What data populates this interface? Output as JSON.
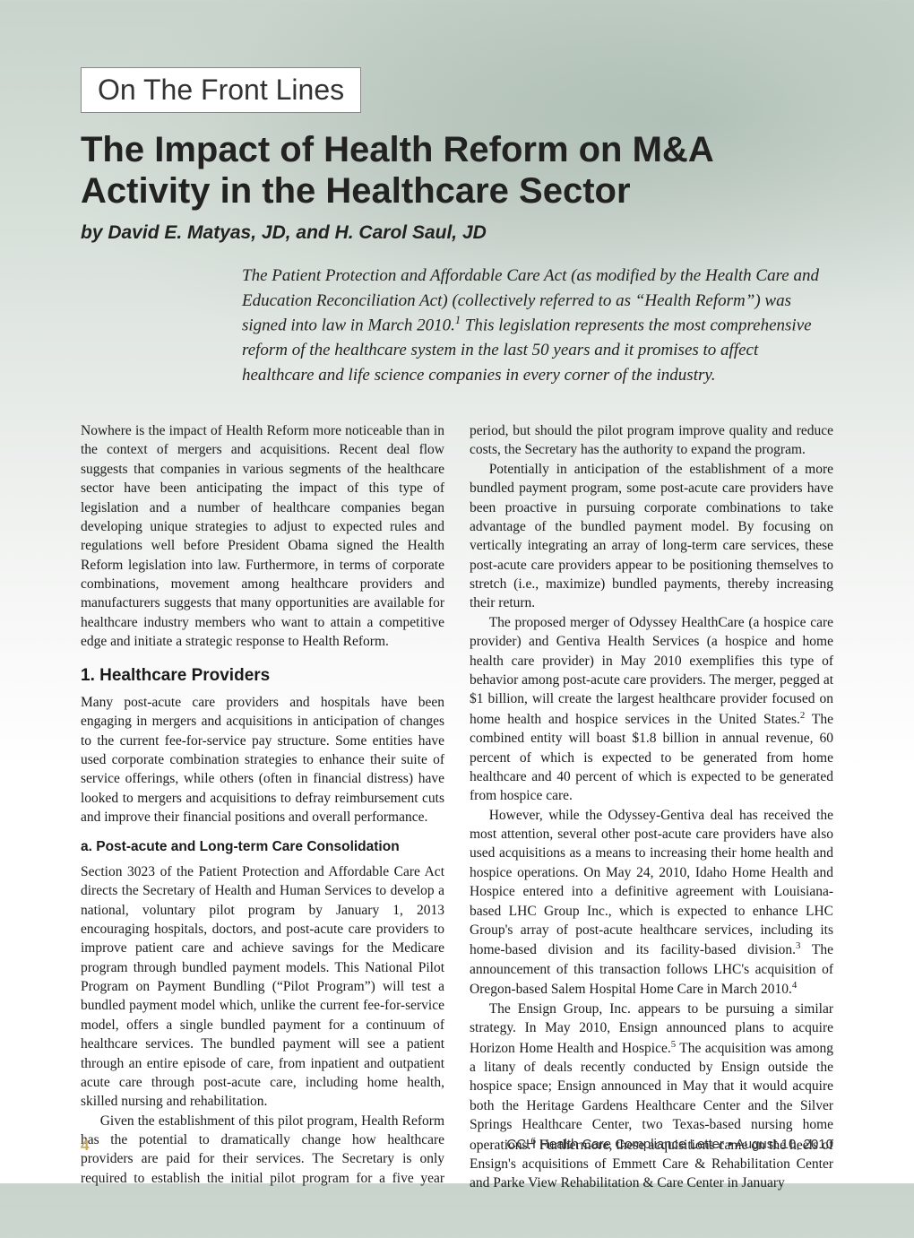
{
  "section_label": "On The Front Lines",
  "title": "The Impact of Health Reform on M&A Activity in the Healthcare Sector",
  "byline": "by David E. Matyas, JD, and H. Carol Saul, JD",
  "intro_part1": "The Patient Protection and Affordable Care Act (as modified by the Health Care and Education Reconciliation Act) (collectively referred to as “Health Reform”) was signed into law in March 2010.",
  "intro_sup1": "1",
  "intro_part2": " This legislation represents the most comprehensive reform of the healthcare system in the last 50 years and it promises to affect healthcare and life science companies in every corner of the industry.",
  "body": {
    "p1": "Nowhere is the impact of Health Reform more noticeable than in the context of mergers and acquisitions. Recent deal flow suggests that companies in various segments of the healthcare sector have been anticipating the impact of this type of legislation and a number of healthcare companies began developing unique strategies to adjust to expected rules and regulations well before President Obama signed the Health Reform legislation into law. Furthermore, in terms of corporate combinations, movement among healthcare providers and manufacturers suggests that many opportunities are available for healthcare industry members who want to attain a competitive edge and initiate a strategic response to Health Reform.",
    "h1": "1. Healthcare Providers",
    "p2": "Many post-acute care providers and hospitals have been engaging in mergers and acquisitions in anticipation of changes to the current fee-for-service pay structure. Some entities have used corporate combination strategies to enhance their suite of service offerings, while others (often in financial distress) have looked to mergers and acquisitions to defray reimbursement cuts and improve their financial positions and overall performance.",
    "h2": "a. Post-acute and Long-term Care Consolidation",
    "p3": "Section 3023 of the Patient Protection and Affordable Care Act directs the Secretary of Health and Human Services to develop a national, voluntary pilot program by January 1, 2013 encouraging hospitals, doctors, and post-acute care providers to improve patient care and achieve savings for the Medicare program through bundled payment models. This National Pilot Program on Payment Bundling (“Pilot Program”) will test a bundled payment model which, unlike the current fee-for-service model, offers a single bundled payment for a continuum of healthcare services. The bundled payment will see a patient through an entire episode of care, from inpatient and outpatient acute care through post-acute care, including home health, skilled nursing and rehabilitation.",
    "p4": "Given the establishment of this pilot program, Health Reform has the potential to dramatically change how healthcare providers are paid for their services. The Secretary is only required to establish the initial pilot program for a five year period, but should the pilot program improve quality and reduce costs, the Secretary has the authority to expand the program.",
    "p5": "Potentially in anticipation of the establishment of a more bundled payment program, some post-acute care providers have been proactive in pursuing corporate combinations to take advantage of the bundled payment model. By focusing on vertically integrating an array of long-term care services, these post-acute care providers appear to be positioning themselves to stretch (i.e., maximize) bundled payments, thereby increasing their return.",
    "p6a": "The proposed merger of Odyssey HealthCare (a hospice care provider) and Gentiva Health Services (a hospice and home health care provider) in May 2010 exemplifies this type of behavior among post-acute care providers. The merger, pegged at $1 billion, will create the largest healthcare provider focused on home health and hospice services in the United States.",
    "sup2": "2",
    "p6b": " The combined entity will boast $1.8 billion in annual revenue, 60 percent of which is expected to be generated from home healthcare and 40 percent of which is expected to be generated from hospice care.",
    "p7a": "However, while the Odyssey-Gentiva deal has received the most attention, several other post-acute care providers have also used acquisitions as a means to increasing their home health and hospice operations. On May 24, 2010, Idaho Home Health and Hospice entered into a definitive agreement with Louisiana-based LHC Group Inc., which is expected to enhance LHC Group's array of post-acute healthcare services, including its home-based division and its facility-based division.",
    "sup3": "3",
    "p7b": " The announcement of this transaction follows LHC's acquisition of Oregon-based Salem Hospital Home Care in March 2010.",
    "sup4": "4",
    "p8a": "The Ensign Group, Inc. appears to be pursuing a similar strategy. In May 2010, Ensign announced plans to acquire Horizon Home Health and Hospice.",
    "sup5": "5",
    "p8b": " The acquisition was among a litany of deals recently conducted by Ensign outside the hospice space; Ensign announced in May that it would acquire both the Heritage Gardens Healthcare Center and the Silver Springs Healthcare Center, two Texas-based nursing home operations.",
    "sup6": "6",
    "p8c": " Furthermore, these acquisitions came on the heels of Ensign's acquisitions of Emmett Care & Rehabilitation Center and Parke View Rehabilitation & Care Center in January"
  },
  "footer": {
    "page_number": "4",
    "publication": "CCH Health Care Compliance Letter  •  August 10, 2010"
  },
  "colors": {
    "bg_top": "#c8d4cc",
    "bg_bottom": "#ffffff",
    "text": "#1a1a1a",
    "page_num": "#c8a95e",
    "label_border": "#888888"
  },
  "typography": {
    "title_fontsize": 40,
    "byline_fontsize": 21,
    "intro_fontsize": 19,
    "body_fontsize": 15.5,
    "section_label_fontsize": 32
  }
}
